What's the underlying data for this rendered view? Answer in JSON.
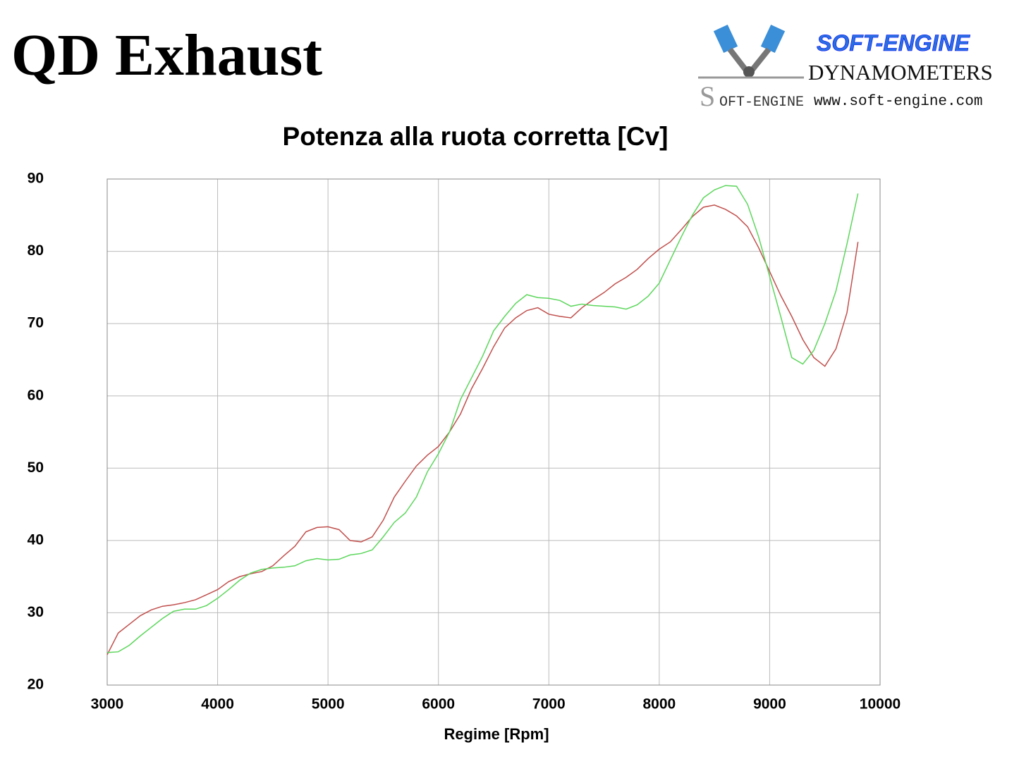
{
  "header": {
    "title": "QD Exhaust"
  },
  "logo": {
    "brand": "SOFT-ENGINE",
    "subtitle": "DYNAMOMETERS",
    "url": "www.soft-engine.com",
    "badge": "OFT-ENGINE"
  },
  "chart_data": {
    "type": "line",
    "title": "Potenza alla ruota corretta [Cv]",
    "xlabel": "Regime [Rpm]",
    "x": [
      3000,
      3100,
      3200,
      3300,
      3400,
      3500,
      3600,
      3700,
      3800,
      3900,
      4000,
      4100,
      4200,
      4300,
      4400,
      4500,
      4600,
      4700,
      4800,
      4900,
      5000,
      5100,
      5200,
      5300,
      5400,
      5500,
      5600,
      5700,
      5800,
      5900,
      6000,
      6100,
      6200,
      6300,
      6400,
      6500,
      6600,
      6700,
      6800,
      6900,
      7000,
      7100,
      7200,
      7300,
      7400,
      7500,
      7600,
      7700,
      7800,
      7900,
      8000,
      8100,
      8200,
      8300,
      8400,
      8500,
      8600,
      8700,
      8800,
      8900,
      9000,
      9100,
      9200,
      9300,
      9400,
      9500,
      9600,
      9700,
      9800
    ],
    "series": [
      {
        "color": "#c0504d",
        "values": [
          24.2,
          27.2,
          28.4,
          29.6,
          30.4,
          30.9,
          31.1,
          31.4,
          31.8,
          32.5,
          33.2,
          34.3,
          35.0,
          35.4,
          35.7,
          36.5,
          37.9,
          39.2,
          41.2,
          41.8,
          41.9,
          41.5,
          40.0,
          39.8,
          40.5,
          42.8,
          46.0,
          48.2,
          50.3,
          51.8,
          53.0,
          55.0,
          57.5,
          61.0,
          63.8,
          66.8,
          69.4,
          70.8,
          71.8,
          72.2,
          71.3,
          71.0,
          70.8,
          72.2,
          73.3,
          74.3,
          75.5,
          76.4,
          77.5,
          79.0,
          80.3,
          81.3,
          83.0,
          84.8,
          86.1,
          86.4,
          85.8,
          84.9,
          83.4,
          80.5,
          77.2,
          73.9,
          71.0,
          67.8,
          65.3,
          64.1,
          66.5,
          71.5,
          81.3
        ]
      },
      {
        "color": "#5cd65c",
        "values": [
          24.5,
          24.6,
          25.5,
          26.8,
          28.0,
          29.2,
          30.2,
          30.5,
          30.5,
          31.0,
          32.0,
          33.2,
          34.5,
          35.5,
          36.0,
          36.2,
          36.3,
          36.5,
          37.2,
          37.5,
          37.3,
          37.4,
          38.0,
          38.2,
          38.7,
          40.5,
          42.5,
          43.8,
          46.0,
          49.5,
          52.0,
          55.0,
          59.5,
          62.5,
          65.5,
          69.0,
          71.0,
          72.8,
          74.0,
          73.6,
          73.5,
          73.2,
          72.4,
          72.7,
          72.5,
          72.4,
          72.3,
          72.0,
          72.6,
          73.8,
          75.6,
          78.8,
          82.0,
          85.0,
          87.4,
          88.5,
          89.1,
          89.0,
          86.5,
          82.0,
          76.5,
          71.0,
          65.3,
          64.4,
          66.3,
          70.0,
          74.5,
          81.0,
          88.0
        ]
      }
    ],
    "xlim": [
      3000,
      10000
    ],
    "xticks": [
      3000,
      4000,
      5000,
      6000,
      7000,
      8000,
      9000,
      10000
    ],
    "ylim": [
      20,
      90
    ],
    "yticks": [
      20,
      30,
      40,
      50,
      60,
      70,
      80,
      90
    ],
    "grid": true
  }
}
